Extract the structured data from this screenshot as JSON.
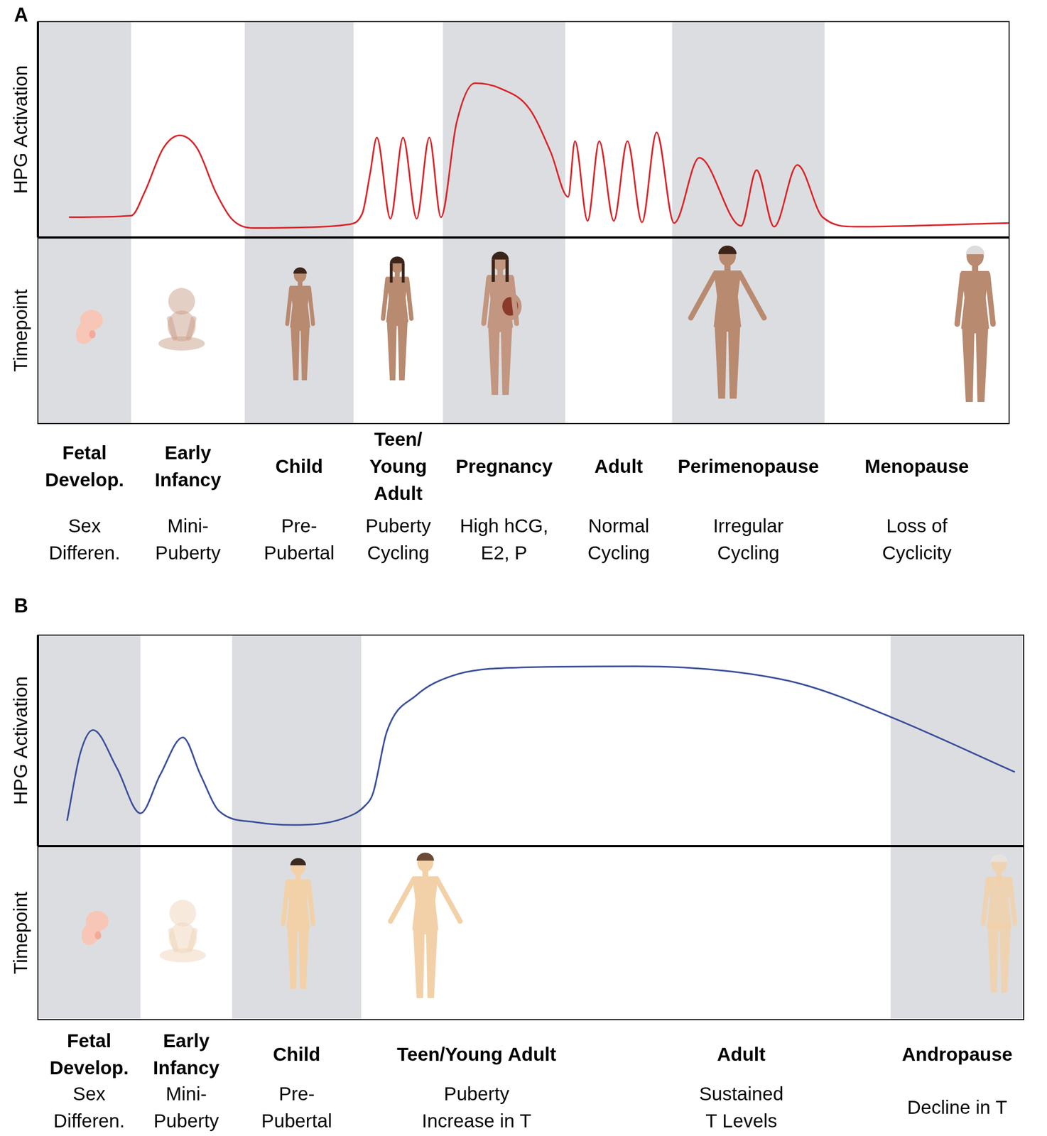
{
  "chart_data": [
    {
      "type": "line",
      "panel": "A",
      "y_label": "HPG Activation",
      "row_label": "Timepoint",
      "color": "#d9262b",
      "xlim": [
        0,
        100
      ],
      "ylim": [
        0,
        100
      ],
      "tick_labels": false,
      "grid": false,
      "x": [
        3.2,
        9.6,
        11.0,
        12.9,
        14.6,
        16.4,
        18.3,
        20.0,
        22.2,
        27.5,
        31.9,
        33.4,
        34.2,
        34.9,
        36.3,
        37.6,
        39.0,
        40.3,
        41.5,
        43.1,
        45.0,
        47.6,
        50.6,
        52.8,
        54.6,
        55.3,
        56.6,
        57.8,
        59.3,
        60.7,
        62.2,
        63.7,
        65.5,
        68.1,
        72.4,
        74.0,
        75.8,
        78.2,
        80.8,
        84.2,
        100
      ],
      "values": [
        9.4,
        10.1,
        21.1,
        41.3,
        47.3,
        41.3,
        21.1,
        8.4,
        4.4,
        4.7,
        6.0,
        11.1,
        29.5,
        46.3,
        8.7,
        46.3,
        8.7,
        46.3,
        9.4,
        53.0,
        71.5,
        69.1,
        59.7,
        39.6,
        18.8,
        44.6,
        7.7,
        44.6,
        7.7,
        44.6,
        7.0,
        48.7,
        6.7,
        36.9,
        5.4,
        31.2,
        5.0,
        33.6,
        9.4,
        5.0,
        6.7
      ],
      "shaded_ranges": [
        [
          0,
          9.6
        ],
        [
          21.3,
          32.5
        ],
        [
          41.7,
          54.3
        ],
        [
          65.3,
          81.0
        ]
      ],
      "stages": [
        {
          "name": [
            "Fetal",
            "Develop."
          ],
          "description": [
            "Sex",
            "Differen."
          ],
          "start": 0,
          "end": 9.6
        },
        {
          "name": [
            "Early",
            "Infancy"
          ],
          "description": [
            "Mini-",
            "Puberty"
          ],
          "start": 9.6,
          "end": 21.3
        },
        {
          "name": [
            "Child"
          ],
          "description": [
            "Pre-",
            "Pubertal"
          ],
          "start": 21.3,
          "end": 32.5
        },
        {
          "name": [
            "Teen/",
            "Young",
            "Adult"
          ],
          "description": [
            "Puberty",
            "Cycling"
          ],
          "start": 32.5,
          "end": 41.7
        },
        {
          "name": [
            "Pregnancy"
          ],
          "description": [
            "High hCG,",
            "E2, P"
          ],
          "start": 41.7,
          "end": 54.3
        },
        {
          "name": [
            "Adult"
          ],
          "description": [
            "Normal",
            "Cycling"
          ],
          "start": 54.3,
          "end": 65.3
        },
        {
          "name": [
            "Perimenopause"
          ],
          "description": [
            "Irregular",
            "Cycling"
          ],
          "start": 65.3,
          "end": 81.0
        },
        {
          "name": [
            "Menopause"
          ],
          "description": [
            "Loss of",
            "Cyclicity"
          ],
          "start": 81.0,
          "end": 100
        }
      ]
    },
    {
      "type": "line",
      "panel": "B",
      "y_label": "HPG Activation",
      "row_label": "Timepoint",
      "color": "#3b4f9b",
      "xlim": [
        0,
        100
      ],
      "ylim": [
        0,
        100
      ],
      "tick_labels": false,
      "grid": false,
      "x": [
        2.96,
        4.3,
        5.6,
        8.0,
        10.4,
        12.4,
        14.7,
        16.5,
        18.4,
        22.1,
        25.8,
        31.0,
        33.2,
        34.0,
        35.4,
        38.4,
        42.1,
        48.0,
        60.6,
        70.2,
        77.6,
        86.5,
        99.1
      ],
      "values": [
        12.0,
        44.0,
        55.0,
        37.1,
        15.5,
        33.7,
        51.5,
        33.7,
        16.5,
        11.3,
        10.0,
        13.1,
        19.2,
        25.1,
        54.3,
        71.5,
        80.8,
        84.5,
        85.2,
        82.8,
        76.6,
        61.2,
        35.1
      ],
      "shaded_ranges": [
        [
          0,
          10.4
        ],
        [
          19.7,
          32.8
        ],
        [
          86.5,
          100
        ]
      ],
      "stages": [
        {
          "name": [
            "Fetal",
            "Develop."
          ],
          "description": [
            "Sex",
            "Differen."
          ],
          "start": 0,
          "end": 10.4
        },
        {
          "name": [
            "Early",
            "Infancy"
          ],
          "description": [
            "Mini-",
            "Puberty"
          ],
          "start": 10.4,
          "end": 19.7
        },
        {
          "name": [
            "Child"
          ],
          "description": [
            "Pre-",
            "Pubertal"
          ],
          "start": 19.7,
          "end": 32.8
        },
        {
          "name": [
            "Teen/Young Adult"
          ],
          "description": [
            "Puberty",
            "Increase in T"
          ],
          "start": 32.8,
          "end": 56.2
        },
        {
          "name": [
            "Adult"
          ],
          "description": [
            "Sustained",
            "T Levels"
          ],
          "start": 56.2,
          "end": 86.5
        },
        {
          "name": [
            "Andropause"
          ],
          "description": [
            "Decline in T"
          ],
          "start": 86.5,
          "end": 100
        }
      ]
    }
  ]
}
